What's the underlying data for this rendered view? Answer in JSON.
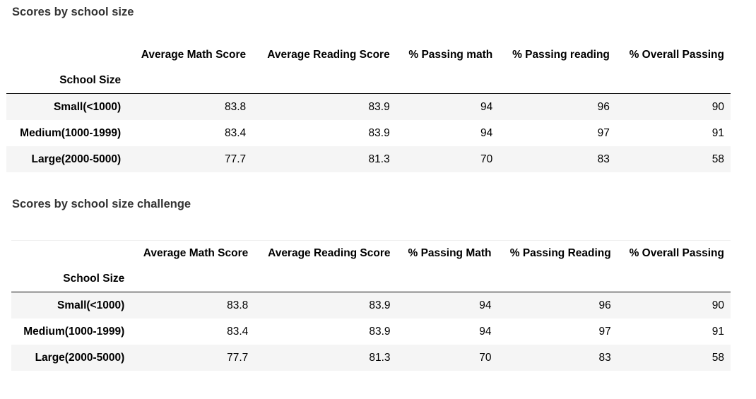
{
  "table1": {
    "title": "Scores by school size",
    "columns": [
      "Average Math Score",
      "Average Reading Score",
      "% Passing math",
      "% Passing reading",
      "% Overall Passing"
    ],
    "index_name": "School Size",
    "rows": [
      {
        "label": "Small(<1000)",
        "values": [
          "83.8",
          "83.9",
          "94",
          "96",
          "90"
        ]
      },
      {
        "label": "Medium(1000-1999)",
        "values": [
          "83.4",
          "83.9",
          "94",
          "97",
          "91"
        ]
      },
      {
        "label": "Large(2000-5000)",
        "values": [
          "77.7",
          "81.3",
          "70",
          "83",
          "58"
        ]
      }
    ]
  },
  "table2": {
    "title": "Scores by school size challenge",
    "columns": [
      "Average Math Score",
      "Average Reading Score",
      "% Passing Math",
      "% Passing Reading",
      "% Overall Passing"
    ],
    "index_name": "School Size",
    "rows": [
      {
        "label": "Small(<1000)",
        "values": [
          "83.8",
          "83.9",
          "94",
          "96",
          "90"
        ]
      },
      {
        "label": "Medium(1000-1999)",
        "values": [
          "83.4",
          "83.9",
          "94",
          "97",
          "91"
        ]
      },
      {
        "label": "Large(2000-5000)",
        "values": [
          "77.7",
          "81.3",
          "70",
          "83",
          "58"
        ]
      }
    ]
  }
}
